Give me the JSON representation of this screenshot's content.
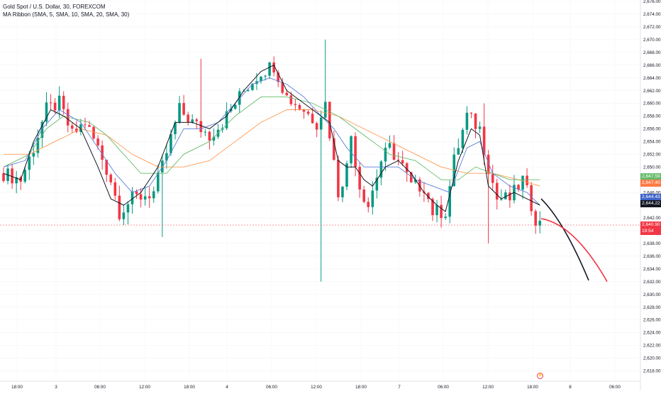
{
  "legend": {
    "symbol_line": "Gold Spot / U.S. Dollar, 30, FOREXCOM",
    "indicator_line": "MA Ribbon (SMA, 5, SMA, 10, SMA, 20, SMA, 30)"
  },
  "price_axis": {
    "labels": [
      "2,676.00",
      "2,674.00",
      "2,672.00",
      "2,670.00",
      "2,668.00",
      "2,666.00",
      "2,664.00",
      "2,662.00",
      "2,660.00",
      "2,658.00",
      "2,656.00",
      "2,654.00",
      "2,652.00",
      "2,650.00",
      "2,648.00",
      "2,646.00",
      "2,644.00",
      "2,642.00",
      "2,640.00",
      "2,638.00",
      "2,636.00",
      "2,634.00",
      "2,632.00",
      "2,630.00",
      "2,628.00",
      "2,626.00",
      "2,624.00",
      "2,622.00",
      "2,620.00",
      "2,618.00"
    ]
  },
  "time_axis": {
    "labels": [
      "18:00",
      "3",
      "06:00",
      "12:00",
      "18:00",
      "4",
      "06:00",
      "12:00",
      "18:00",
      "7",
      "06:00",
      "12:00",
      "18:00",
      "8",
      "06:00"
    ]
  },
  "badges": {
    "ma_green": "2,647.59",
    "ma_orange": "2,647.40",
    "ma_blue": "2,644.43",
    "ma_black": "2,644.22",
    "price": "2,640.90",
    "countdown": "19:54"
  },
  "event_flag": "⚡",
  "colors": {
    "up": "#089981",
    "down": "#f23645",
    "sma5": "#131722",
    "sma10": "#5b7fd6",
    "sma20": "#66bb6a",
    "sma30": "#ff9b52",
    "price_line": "#f23645"
  },
  "chart_data": {
    "type": "candlestick",
    "title": "Gold Spot / U.S. Dollar, 30, FOREXCOM",
    "ylim": [
      2617,
      2677
    ],
    "y_ticks": [
      2618,
      2620,
      2622,
      2624,
      2626,
      2628,
      2630,
      2632,
      2634,
      2636,
      2638,
      2640,
      2642,
      2644,
      2646,
      2648,
      2650,
      2652,
      2654,
      2656,
      2658,
      2660,
      2662,
      2664,
      2666,
      2668,
      2670,
      2672,
      2674,
      2676
    ],
    "bar_count": 126,
    "last_price": 2640.9,
    "series_anchors": {
      "close": [
        [
          0,
          2649
        ],
        [
          4,
          2648
        ],
        [
          7,
          2653
        ],
        [
          10,
          2659
        ],
        [
          13,
          2660
        ],
        [
          16,
          2655
        ],
        [
          19,
          2657
        ],
        [
          22,
          2653
        ],
        [
          25,
          2648
        ],
        [
          27,
          2643
        ],
        [
          30,
          2645
        ],
        [
          35,
          2646
        ],
        [
          37,
          2650
        ],
        [
          41,
          2659
        ],
        [
          44,
          2657
        ],
        [
          48,
          2655
        ],
        [
          51,
          2657
        ],
        [
          56,
          2662
        ],
        [
          60,
          2665
        ],
        [
          63,
          2666
        ],
        [
          66,
          2661
        ],
        [
          70,
          2659
        ],
        [
          73,
          2657
        ],
        [
          75,
          2660
        ],
        [
          78,
          2646
        ],
        [
          80,
          2650
        ],
        [
          81,
          2655
        ],
        [
          83,
          2647
        ],
        [
          85,
          2644
        ],
        [
          88,
          2651
        ],
        [
          90,
          2653
        ],
        [
          93,
          2650
        ],
        [
          95,
          2647
        ],
        [
          98,
          2647
        ],
        [
          100,
          2643
        ],
        [
          103,
          2643
        ],
        [
          105,
          2651
        ],
        [
          108,
          2658
        ],
        [
          111,
          2656
        ],
        [
          113,
          2650
        ],
        [
          115,
          2645
        ],
        [
          118,
          2645
        ],
        [
          121,
          2648
        ],
        [
          124,
          2642
        ],
        [
          125,
          2641
        ]
      ],
      "sma5": [
        [
          0,
          2649
        ],
        [
          4,
          2648
        ],
        [
          7,
          2654
        ],
        [
          11,
          2659
        ],
        [
          14,
          2658
        ],
        [
          18,
          2656
        ],
        [
          22,
          2650
        ],
        [
          25,
          2645
        ],
        [
          28,
          2644
        ],
        [
          32,
          2646
        ],
        [
          36,
          2650
        ],
        [
          40,
          2657
        ],
        [
          44,
          2657
        ],
        [
          48,
          2656
        ],
        [
          52,
          2658
        ],
        [
          56,
          2662
        ],
        [
          60,
          2665
        ],
        [
          63,
          2666
        ],
        [
          66,
          2662
        ],
        [
          70,
          2660
        ],
        [
          74,
          2658
        ],
        [
          76,
          2657
        ],
        [
          78,
          2651
        ],
        [
          80,
          2650
        ],
        [
          82,
          2650
        ],
        [
          84,
          2648
        ],
        [
          86,
          2647
        ],
        [
          89,
          2650
        ],
        [
          92,
          2651
        ],
        [
          95,
          2649
        ],
        [
          98,
          2646
        ],
        [
          101,
          2644
        ],
        [
          103,
          2643
        ],
        [
          106,
          2651
        ],
        [
          109,
          2656
        ],
        [
          111,
          2655
        ],
        [
          113,
          2647
        ],
        [
          116,
          2645
        ],
        [
          119,
          2646
        ],
        [
          122,
          2645
        ],
        [
          125,
          2644
        ]
      ],
      "sma10": [
        [
          0,
          2650
        ],
        [
          5,
          2651
        ],
        [
          9,
          2656
        ],
        [
          13,
          2659
        ],
        [
          18,
          2657
        ],
        [
          22,
          2653
        ],
        [
          26,
          2649
        ],
        [
          30,
          2646
        ],
        [
          34,
          2647
        ],
        [
          38,
          2651
        ],
        [
          42,
          2656
        ],
        [
          46,
          2656
        ],
        [
          50,
          2657
        ],
        [
          54,
          2660
        ],
        [
          58,
          2663
        ],
        [
          62,
          2664
        ],
        [
          66,
          2663
        ],
        [
          70,
          2661
        ],
        [
          74,
          2658
        ],
        [
          77,
          2656
        ],
        [
          80,
          2653
        ],
        [
          84,
          2650
        ],
        [
          88,
          2650
        ],
        [
          92,
          2650
        ],
        [
          96,
          2648
        ],
        [
          100,
          2647
        ],
        [
          104,
          2646
        ],
        [
          108,
          2653
        ],
        [
          111,
          2654
        ],
        [
          114,
          2649
        ],
        [
          118,
          2647
        ],
        [
          122,
          2646
        ],
        [
          125,
          2644
        ]
      ],
      "sma20": [
        [
          0,
          2650
        ],
        [
          6,
          2652
        ],
        [
          10,
          2656
        ],
        [
          14,
          2658
        ],
        [
          20,
          2657
        ],
        [
          24,
          2655
        ],
        [
          28,
          2652
        ],
        [
          32,
          2649
        ],
        [
          38,
          2649
        ],
        [
          42,
          2652
        ],
        [
          48,
          2654
        ],
        [
          54,
          2658
        ],
        [
          60,
          2661
        ],
        [
          66,
          2661
        ],
        [
          72,
          2660
        ],
        [
          78,
          2658
        ],
        [
          84,
          2655
        ],
        [
          90,
          2652
        ],
        [
          96,
          2651
        ],
        [
          102,
          2648
        ],
        [
          106,
          2648
        ],
        [
          110,
          2650
        ],
        [
          114,
          2649
        ],
        [
          118,
          2648
        ],
        [
          122,
          2648
        ],
        [
          125,
          2648
        ]
      ],
      "sma30": [
        [
          0,
          2652
        ],
        [
          6,
          2652
        ],
        [
          12,
          2654
        ],
        [
          18,
          2656
        ],
        [
          24,
          2655
        ],
        [
          30,
          2652
        ],
        [
          36,
          2650
        ],
        [
          42,
          2650
        ],
        [
          48,
          2651
        ],
        [
          54,
          2654
        ],
        [
          60,
          2657
        ],
        [
          66,
          2659
        ],
        [
          72,
          2659
        ],
        [
          78,
          2658
        ],
        [
          84,
          2656
        ],
        [
          90,
          2654
        ],
        [
          96,
          2652
        ],
        [
          102,
          2650
        ],
        [
          108,
          2649
        ],
        [
          114,
          2649
        ],
        [
          120,
          2648
        ],
        [
          125,
          2647
        ]
      ],
      "highlights": [
        [
          29,
          2641
        ],
        [
          37,
          2639
        ],
        [
          75,
          2670
        ],
        [
          74,
          2632
        ],
        [
          46,
          2667
        ],
        [
          112,
          2660
        ],
        [
          113,
          2638
        ]
      ]
    },
    "projection_black": [
      [
        2645,
        0
      ],
      [
        2641,
        1
      ],
      [
        2631,
        2
      ]
    ],
    "projection_red": [
      [
        2642,
        0
      ],
      [
        2640,
        1
      ],
      [
        2632,
        2
      ]
    ]
  }
}
